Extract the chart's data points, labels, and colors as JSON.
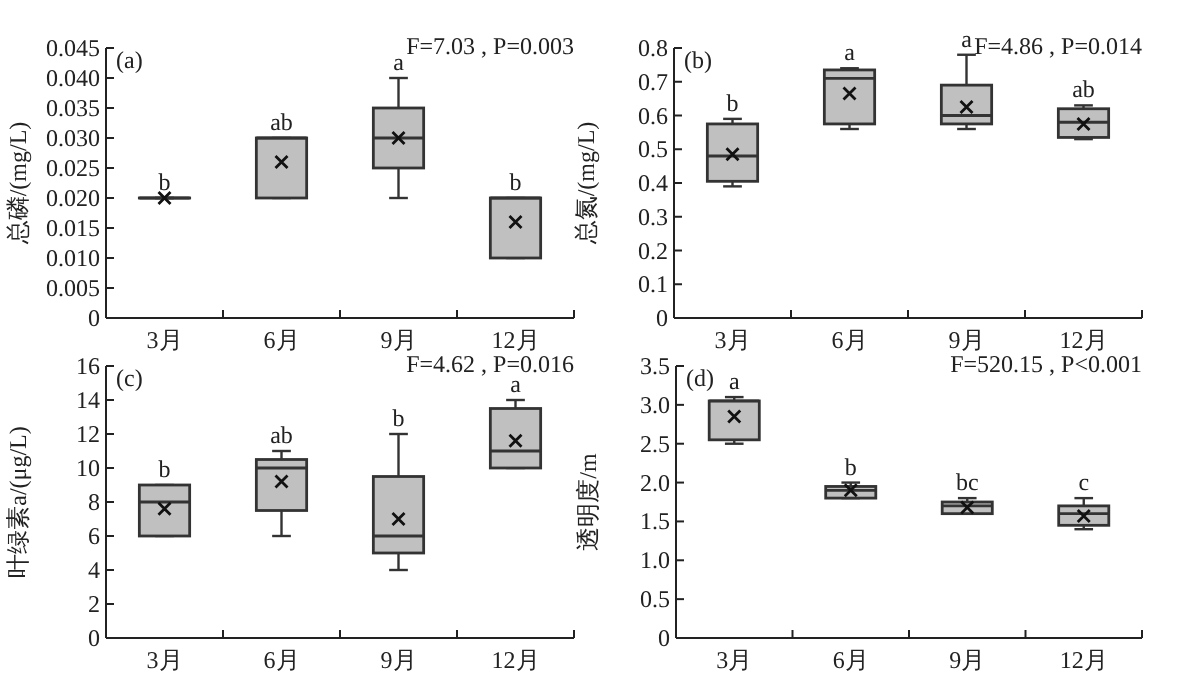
{
  "chart_data": [
    {
      "type": "box",
      "categories": [
        "3月",
        "6月",
        "9月",
        "12月"
      ],
      "ylabel": "总磷/(mg/L)",
      "ylim": [
        0,
        0.045
      ],
      "yticks": [
        0,
        {
          "value": 0.005,
          "label": "0.005"
        },
        {
          "value": 0.01,
          "label": "0.010"
        },
        {
          "value": 0.015,
          "label": "0.015"
        },
        {
          "value": 0.02,
          "label": "0.020"
        },
        {
          "value": 0.025,
          "label": "0.025"
        },
        {
          "value": 0.03,
          "label": "0.030"
        },
        {
          "value": 0.035,
          "label": "0.035"
        },
        {
          "value": 0.04,
          "label": "0.040"
        },
        {
          "value": 0.045,
          "label": "0.045"
        }
      ],
      "color": "#c0c0c0",
      "marker": "cross",
      "boxes": [
        {
          "low": 0.02,
          "q1": 0.02,
          "median": 0.02,
          "q3": 0.02,
          "high": 0.02,
          "mean": 0.02
        },
        {
          "low": 0.02,
          "q1": 0.02,
          "median": 0.03,
          "q3": 0.03,
          "high": 0.03,
          "mean": 0.026
        },
        {
          "low": 0.02,
          "q1": 0.025,
          "median": 0.03,
          "q3": 0.035,
          "high": 0.04,
          "mean": 0.03
        },
        {
          "low": 0.01,
          "q1": 0.01,
          "median": 0.02,
          "q3": 0.02,
          "high": 0.02,
          "mean": 0.016
        }
      ],
      "annotations": [
        "(a)",
        "F=7.03 , P=0.003",
        {
          "text": "b",
          "x": "3月",
          "y": 0.02
        },
        {
          "text": "ab",
          "x": "6月",
          "y": 0.03
        },
        {
          "text": "a",
          "x": "9月",
          "y": 0.04
        },
        {
          "text": "b",
          "x": "12月",
          "y": 0.02
        }
      ]
    },
    {
      "type": "box",
      "categories": [
        "3月",
        "6月",
        "9月",
        "12月"
      ],
      "ylabel": "总氮/(mg/L)",
      "ylim": [
        0,
        0.8
      ],
      "yticks": [
        0,
        0.1,
        0.2,
        0.3,
        0.4,
        0.5,
        0.6,
        0.7,
        0.8
      ],
      "color": "#c0c0c0",
      "marker": "cross",
      "boxes": [
        {
          "low": 0.39,
          "q1": 0.405,
          "median": 0.48,
          "q3": 0.575,
          "high": 0.59,
          "mean": 0.485
        },
        {
          "low": 0.56,
          "q1": 0.575,
          "median": 0.71,
          "q3": 0.735,
          "high": 0.74,
          "mean": 0.665
        },
        {
          "low": 0.56,
          "q1": 0.575,
          "median": 0.6,
          "q3": 0.69,
          "high": 0.78,
          "mean": 0.625
        },
        {
          "low": 0.53,
          "q1": 0.535,
          "median": 0.58,
          "q3": 0.62,
          "high": 0.63,
          "mean": 0.575
        }
      ],
      "annotations": [
        "(b)",
        "F=4.86 , P=0.014",
        {
          "text": "b",
          "x": "3月",
          "y": 0.59
        },
        {
          "text": "a",
          "x": "6月",
          "y": 0.74
        },
        {
          "text": "a",
          "x": "9月",
          "y": 0.78
        },
        {
          "text": "ab",
          "x": "12月",
          "y": 0.63
        }
      ]
    },
    {
      "type": "box",
      "categories": [
        "3月",
        "6月",
        "9月",
        "12月"
      ],
      "ylabel": "叶绿素a/(μg/L)",
      "ylim": [
        0,
        16
      ],
      "yticks": [
        0,
        2,
        4,
        6,
        8,
        10,
        12,
        14,
        16
      ],
      "color": "#c0c0c0",
      "marker": "cross",
      "boxes": [
        {
          "low": 6,
          "q1": 6,
          "median": 8,
          "q3": 9,
          "high": 9,
          "mean": 7.6
        },
        {
          "low": 6,
          "q1": 7.5,
          "median": 10,
          "q3": 10.5,
          "high": 11,
          "mean": 9.2
        },
        {
          "low": 4,
          "q1": 5,
          "median": 6,
          "q3": 9.5,
          "high": 12,
          "mean": 7
        },
        {
          "low": 10,
          "q1": 10,
          "median": 11,
          "q3": 13.5,
          "high": 14,
          "mean": 11.6
        }
      ],
      "annotations": [
        "(c)",
        "F=4.62 , P=0.016",
        {
          "text": "b",
          "x": "3月",
          "y": 9
        },
        {
          "text": "ab",
          "x": "6月",
          "y": 11
        },
        {
          "text": "b",
          "x": "9月",
          "y": 12
        },
        {
          "text": "a",
          "x": "12月",
          "y": 14
        }
      ]
    },
    {
      "type": "box",
      "categories": [
        "3月",
        "6月",
        "9月",
        "12月"
      ],
      "ylabel": "透明度/m",
      "ylim": [
        0,
        3.5
      ],
      "yticks": [
        0,
        {
          "value": 0.5,
          "label": "0.5"
        },
        {
          "value": 1,
          "label": "1.0"
        },
        {
          "value": 1.5,
          "label": "1.5"
        },
        {
          "value": 2,
          "label": "2.0"
        },
        {
          "value": 2.5,
          "label": "2.5"
        },
        {
          "value": 3,
          "label": "3.0"
        },
        {
          "value": 3.5,
          "label": "3.5"
        }
      ],
      "color": "#c0c0c0",
      "marker": "cross",
      "boxes": [
        {
          "low": 2.5,
          "q1": 2.55,
          "median": 3.05,
          "q3": 3.05,
          "high": 3.1,
          "mean": 2.85
        },
        {
          "low": 1.8,
          "q1": 1.8,
          "median": 1.9,
          "q3": 1.95,
          "high": 2.0,
          "mean": 1.9
        },
        {
          "low": 1.6,
          "q1": 1.6,
          "median": 1.7,
          "q3": 1.75,
          "high": 1.8,
          "mean": 1.68
        },
        {
          "low": 1.4,
          "q1": 1.45,
          "median": 1.6,
          "q3": 1.7,
          "high": 1.8,
          "mean": 1.57
        }
      ],
      "annotations": [
        "(d)",
        "F=520.15 , P<0.001",
        {
          "text": "a",
          "x": "3月",
          "y": 3.1
        },
        {
          "text": "b",
          "x": "6月",
          "y": 2.0
        },
        {
          "text": "bc",
          "x": "9月",
          "y": 1.8
        },
        {
          "text": "c",
          "x": "12月",
          "y": 1.8
        }
      ]
    }
  ]
}
